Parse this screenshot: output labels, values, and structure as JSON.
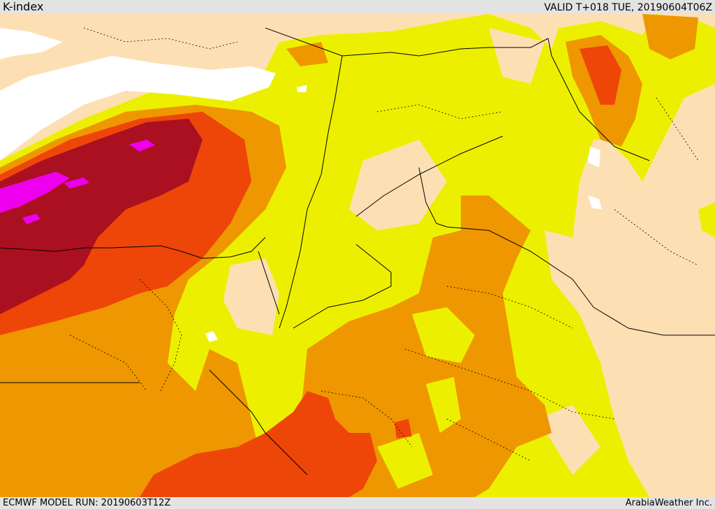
{
  "header": {
    "title": "K-index",
    "valid": "VALID T+018 TUE, 20190604T06Z"
  },
  "footer": {
    "model_run": "ECMWF MODEL RUN: 20190603T12Z",
    "credit": "ArabiaWeather Inc."
  },
  "map": {
    "field": "K-index",
    "palette": {
      "land": "#fce0b4",
      "sea": "#ffffff",
      "yellow": "#ecf000",
      "orange": "#ee9700",
      "dark_orange": "#ee4509",
      "dark_red": "#aa1020",
      "magenta": "#ee00ee"
    }
  }
}
